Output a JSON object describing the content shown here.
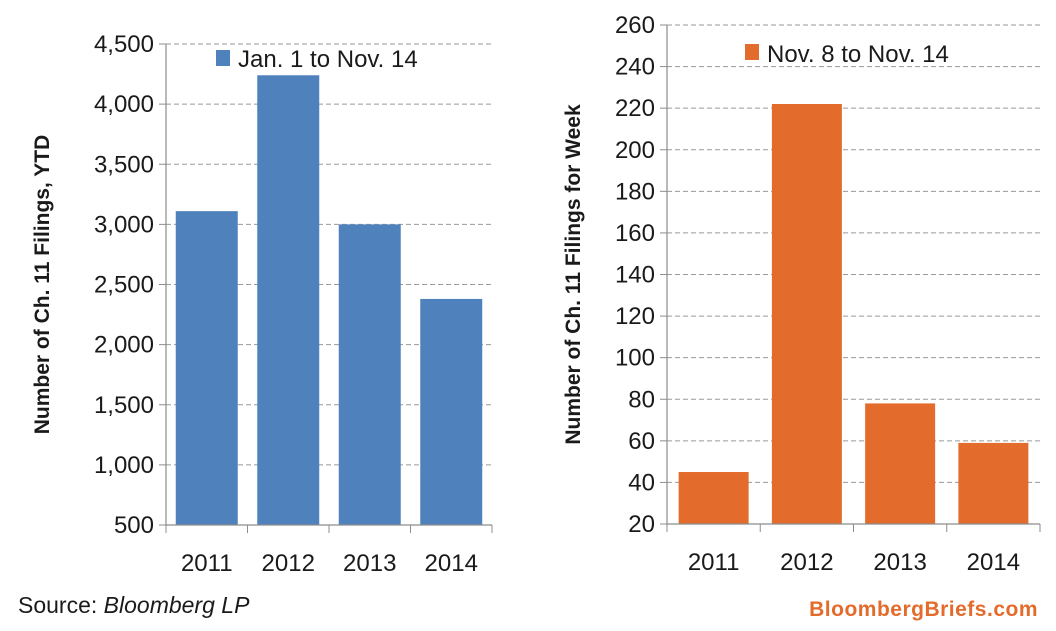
{
  "source": {
    "prefix": "Source: ",
    "name": "Bloomberg LP"
  },
  "brand": "BloombergBriefs.com",
  "colors": {
    "left": "#4f81bd",
    "right": "#e36c2c",
    "grid": "#9a9a9a",
    "axis": "#8c8c8c"
  },
  "chart_data": [
    {
      "type": "bar",
      "categories": [
        "2011",
        "2012",
        "2013",
        "2014"
      ],
      "series": [
        {
          "name": "Jan. 1 to Nov. 14",
          "values": [
            3110,
            4240,
            3000,
            2380
          ]
        }
      ],
      "ylabel": "Number of Ch. 11 Filings, YTD",
      "xlabel": "",
      "ylim": [
        500,
        4500
      ],
      "yticks": [
        500,
        1000,
        1500,
        2000,
        2500,
        3000,
        3500,
        4000,
        4500
      ],
      "ytick_labels": [
        "500",
        "1,000",
        "1,500",
        "2,000",
        "2,500",
        "3,000",
        "3,500",
        "4,000",
        "4,500"
      ],
      "grid": true,
      "legend": "top"
    },
    {
      "type": "bar",
      "categories": [
        "2011",
        "2012",
        "2013",
        "2014"
      ],
      "series": [
        {
          "name": "Nov. 8 to Nov. 14",
          "values": [
            45,
            222,
            78,
            59
          ]
        }
      ],
      "ylabel": "Number of Ch. 11 Filings for Week",
      "xlabel": "",
      "ylim": [
        20,
        260
      ],
      "yticks": [
        20,
        40,
        60,
        80,
        100,
        120,
        140,
        160,
        180,
        200,
        220,
        240,
        260
      ],
      "ytick_labels": [
        "20",
        "40",
        "60",
        "80",
        "100",
        "120",
        "140",
        "160",
        "180",
        "200",
        "220",
        "240",
        "260"
      ],
      "grid": true,
      "legend": "top"
    }
  ]
}
